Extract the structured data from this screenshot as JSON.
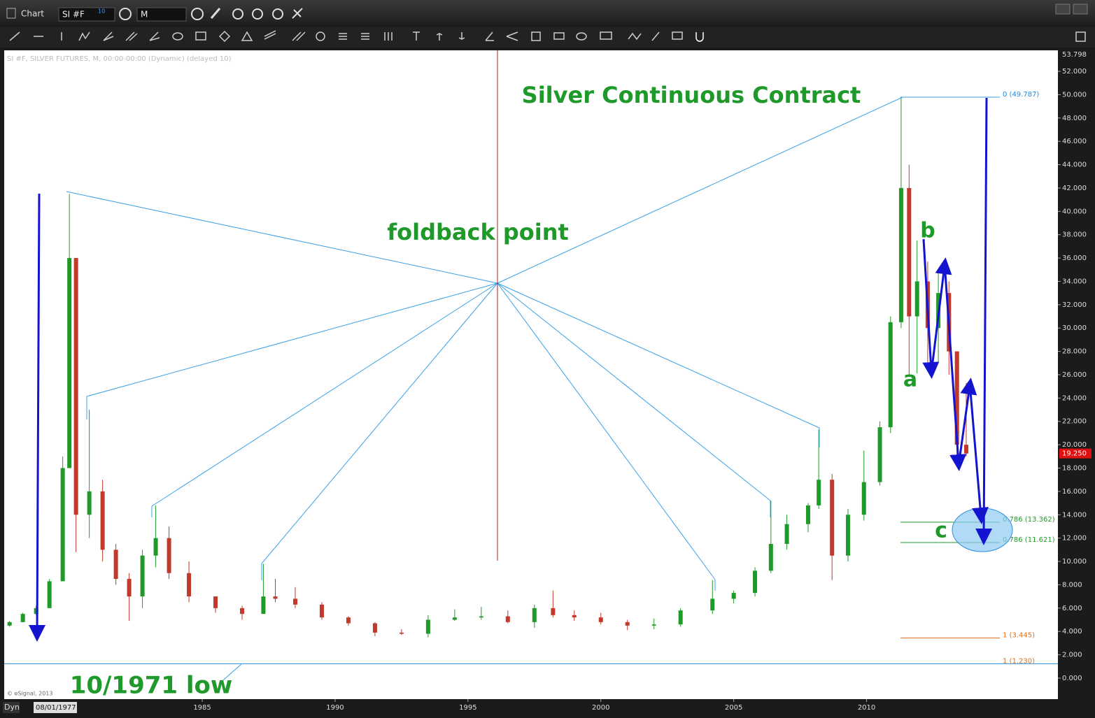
{
  "window": {
    "title": "Chart",
    "symbol": "SI #F",
    "delay": "10",
    "interval": "M"
  },
  "chart_data": {
    "type": "candlestick",
    "info": "SI #F, SILVER FUTURES, M, 00:00-00:00 (Dynamic) (delayed 10)",
    "x": [
      1977.75,
      1978.25,
      1978.75,
      1979.25,
      1979.75,
      1980.0,
      1980.25,
      1980.75,
      1981.25,
      1981.75,
      1982.25,
      1982.75,
      1983.25,
      1983.75,
      1984.5,
      1985.5,
      1986.5,
      1987.3,
      1987.75,
      1988.5,
      1989.5,
      1990.5,
      1991.5,
      1992.5,
      1993.5,
      1994.5,
      1995.5,
      1996.5,
      1997.5,
      1998.2,
      1999.0,
      2000.0,
      2001.0,
      2002.0,
      2003.0,
      2004.2,
      2005.0,
      2005.8,
      2006.4,
      2007.0,
      2007.8,
      2008.2,
      2008.7,
      2009.3,
      2009.9,
      2010.5,
      2010.9,
      2011.3,
      2011.6,
      2011.9,
      2012.3,
      2012.7,
      2013.1,
      2013.4,
      2013.75
    ],
    "open": [
      4.5,
      4.8,
      5.5,
      6.0,
      8.3,
      18,
      36,
      14,
      16,
      11,
      8.5,
      7,
      10.5,
      12,
      9,
      7,
      6,
      5.5,
      7,
      6.8,
      6.3,
      5.2,
      4.7,
      3.9,
      3.8,
      5.0,
      5.2,
      5.3,
      4.8,
      6.0,
      5.4,
      5.2,
      4.8,
      4.5,
      4.6,
      5.8,
      6.8,
      7.3,
      9.2,
      11.5,
      13.2,
      14.8,
      17.0,
      10.5,
      14.0,
      16.8,
      21.5,
      30.5,
      42,
      31,
      34,
      30,
      33,
      28,
      20
    ],
    "high": [
      4.9,
      5.6,
      6.2,
      8.5,
      19,
      41.5,
      36,
      23,
      17,
      11.5,
      9,
      11,
      14.8,
      13,
      10,
      7,
      6.2,
      9.8,
      8.5,
      7.8,
      6.5,
      5.3,
      4.8,
      4.2,
      5.4,
      5.9,
      6.1,
      5.8,
      6.3,
      7.5,
      5.8,
      5.6,
      5.0,
      5.1,
      6.0,
      8.4,
      7.5,
      9.5,
      15.2,
      14.0,
      15.0,
      21.3,
      17.5,
      14.5,
      19.5,
      22,
      31,
      49.8,
      44,
      37.5,
      35.7,
      35,
      34,
      28,
      25.3
    ],
    "low": [
      4.4,
      4.8,
      5.4,
      6.0,
      8.3,
      18,
      10.8,
      12,
      10,
      8,
      4.9,
      6,
      9.5,
      8.5,
      6.5,
      5.6,
      5,
      5.5,
      6.5,
      6,
      5,
      4.5,
      3.6,
      3.7,
      3.5,
      4.9,
      5.0,
      4.7,
      4.3,
      5.2,
      4.9,
      4.6,
      4.1,
      4.2,
      4.4,
      5.5,
      6.4,
      7.0,
      9.0,
      11.0,
      12.5,
      14.5,
      8.4,
      10.0,
      13.5,
      16.5,
      21.0,
      30.0,
      26,
      26.1,
      26.5,
      27,
      26,
      18.2,
      19
    ],
    "close": [
      4.8,
      5.5,
      6.0,
      8.3,
      18,
      36,
      14,
      16,
      11,
      8.5,
      7,
      10.5,
      12,
      9,
      7,
      6,
      5.5,
      7,
      6.8,
      6.3,
      5.2,
      4.7,
      3.9,
      3.8,
      5.0,
      5.2,
      5.3,
      4.8,
      6.0,
      5.4,
      5.2,
      4.8,
      4.5,
      4.6,
      5.8,
      6.8,
      7.3,
      9.2,
      11.5,
      13.2,
      14.8,
      17.0,
      10.5,
      14.0,
      16.8,
      21.5,
      30.5,
      42,
      31,
      34,
      30,
      33,
      28,
      20,
      19.25
    ],
    "up_color": "#1f9a2a",
    "down_color": "#c0392b",
    "xlim": [
      1977.6,
      2017.2
    ],
    "xticks": [
      1985,
      1990,
      1995,
      2000,
      2005,
      2010
    ],
    "ylim": [
      -1.8,
      53.798
    ],
    "yticks": [
      {
        "value": 0,
        "label": "0.000"
      },
      {
        "value": 2,
        "label": "2.000"
      },
      {
        "value": 4,
        "label": "4.000"
      },
      {
        "value": 6,
        "label": "6.000"
      },
      {
        "value": 8,
        "label": "8.000"
      },
      {
        "value": 10,
        "label": "10.000"
      },
      {
        "value": 12,
        "label": "12.000"
      },
      {
        "value": 14,
        "label": "14.000"
      },
      {
        "value": 16,
        "label": "16.000"
      },
      {
        "value": 18,
        "label": "18.000"
      },
      {
        "value": 20,
        "label": "20.000"
      },
      {
        "value": 22,
        "label": "22.000"
      },
      {
        "value": 24,
        "label": "24.000"
      },
      {
        "value": 26,
        "label": "26.000"
      },
      {
        "value": 28,
        "label": "28.000"
      },
      {
        "value": 30,
        "label": "30.000"
      },
      {
        "value": 32,
        "label": "32.000"
      },
      {
        "value": 34,
        "label": "34.000"
      },
      {
        "value": 36,
        "label": "36.000"
      },
      {
        "value": 38,
        "label": "38.000"
      },
      {
        "value": 40,
        "label": "40.000"
      },
      {
        "value": 42,
        "label": "42.000"
      },
      {
        "value": 44,
        "label": "44.000"
      },
      {
        "value": 46,
        "label": "46.000"
      },
      {
        "value": 48,
        "label": "48.000"
      },
      {
        "value": 50,
        "label": "50.000"
      },
      {
        "value": 52,
        "label": "52.000"
      }
    ],
    "last_price": {
      "value": 19.25,
      "label": "19.250"
    },
    "fib_levels": [
      {
        "label": "0 (49.787)",
        "value": 49.787,
        "color": "#1e88e5",
        "line_color": "#3aa0e8"
      },
      {
        "label": "0.786 (13.362)",
        "value": 13.362,
        "color": "#1f9a2a",
        "line_color": "#1f9a2a"
      },
      {
        "label": "0.786 (11.621)",
        "value": 11.621,
        "color": "#1f9a2a",
        "line_color": "#1f9a2a"
      },
      {
        "label": "1 (3.445)",
        "value": 3.445,
        "color": "#e07020",
        "line_color": "#e07020"
      },
      {
        "label": "1 (1.230)",
        "value": 1.23,
        "color": "#e07020",
        "line_color": "#2a8ee0"
      }
    ],
    "annotations": [
      "Silver Continuous Contract",
      "foldback point",
      "a",
      "b",
      "c",
      "10/1971 low"
    ],
    "copyright": "© eSignal, 2013",
    "mode": "Dyn",
    "cursor_date": "08/01/1977"
  }
}
